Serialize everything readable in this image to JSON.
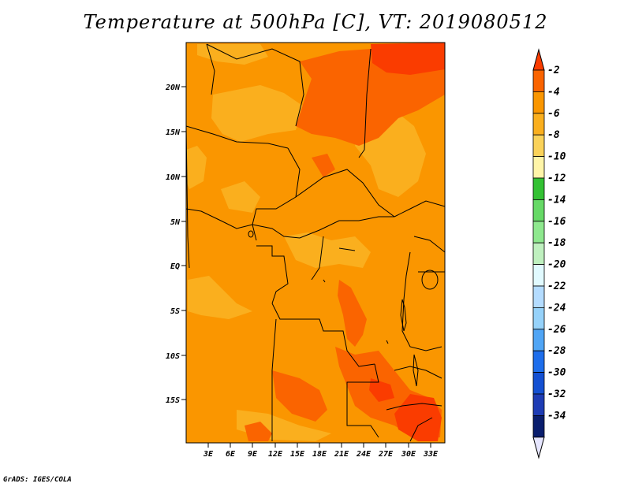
{
  "title": "Temperature at 500hPa [C], VT: 2019080512",
  "credit": "GrADS: IGES/COLA",
  "map": {
    "lat_labels": [
      "20N",
      "15N",
      "10N",
      "5N",
      "EQ",
      "5S",
      "10S",
      "15S"
    ],
    "lon_labels": [
      "3E",
      "6E",
      "9E",
      "12E",
      "15E",
      "18E",
      "21E",
      "24E",
      "27E",
      "30E",
      "33E"
    ]
  },
  "legend": {
    "levels": [
      "-2",
      "-4",
      "-6",
      "-8",
      "-10",
      "-12",
      "-14",
      "-16",
      "-18",
      "-20",
      "-22",
      "-24",
      "-26",
      "-28",
      "-30",
      "-32",
      "-34"
    ],
    "colors": [
      "#fa3c00",
      "#fa6400",
      "#fa9600",
      "#faaf1e",
      "#fad25a",
      "#fff5a8",
      "#33c133",
      "#66d966",
      "#8ee88e",
      "#bff0bf",
      "#e1faff",
      "#b4dcff",
      "#96d2fa",
      "#50a5f5",
      "#1e6eeb",
      "#1450d2",
      "#1e3cb4",
      "#0a1e6e",
      "#e6e6ff"
    ]
  }
}
